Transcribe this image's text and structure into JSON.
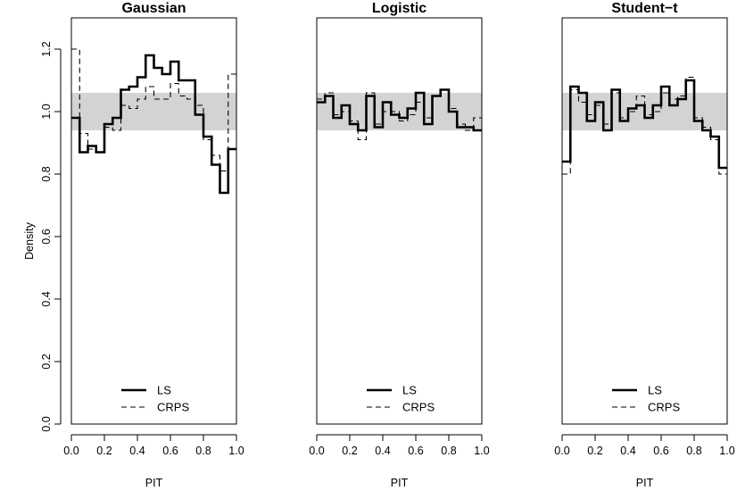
{
  "figure": {
    "ylabel": "Density"
  },
  "chart_data": [
    {
      "type": "line",
      "title": "Gaussian",
      "xlabel": "PIT",
      "ylabel": "Density",
      "xlim": [
        0,
        1
      ],
      "ylim": [
        0,
        1.3
      ],
      "x_ticks": [
        "0.0",
        "0.2",
        "0.4",
        "0.6",
        "0.8",
        "1.0"
      ],
      "y_ticks": [
        "0.0",
        "0.2",
        "0.4",
        "0.6",
        "0.8",
        "1.0",
        "1.2"
      ],
      "band": [
        0.94,
        1.06
      ],
      "bin_edges": [
        0,
        0.05,
        0.1,
        0.15,
        0.2,
        0.25,
        0.3,
        0.35,
        0.4,
        0.45,
        0.5,
        0.55,
        0.6,
        0.65,
        0.7,
        0.75,
        0.8,
        0.85,
        0.9,
        0.95,
        1.0
      ],
      "legend": {
        "position": "bottom",
        "entries": [
          "LS",
          "CRPS"
        ]
      },
      "series": [
        {
          "name": "LS",
          "style": "solid",
          "values": [
            0.98,
            0.87,
            0.89,
            0.87,
            0.96,
            0.98,
            1.07,
            1.08,
            1.11,
            1.18,
            1.14,
            1.12,
            1.16,
            1.1,
            1.1,
            0.99,
            0.92,
            0.83,
            0.74,
            0.88
          ]
        },
        {
          "name": "CRPS",
          "style": "dashed",
          "values": [
            1.2,
            0.93,
            0.88,
            0.87,
            0.95,
            0.94,
            1.02,
            1.01,
            1.04,
            1.08,
            1.04,
            1.04,
            1.09,
            1.05,
            1.04,
            1.02,
            0.91,
            0.86,
            0.81,
            1.12
          ]
        }
      ]
    },
    {
      "type": "line",
      "title": "Logistic",
      "xlabel": "PIT",
      "xlim": [
        0,
        1
      ],
      "ylim": [
        0,
        1.3
      ],
      "x_ticks": [
        "0.0",
        "0.2",
        "0.4",
        "0.6",
        "0.8",
        "1.0"
      ],
      "band": [
        0.94,
        1.06
      ],
      "bin_edges": [
        0,
        0.05,
        0.1,
        0.15,
        0.2,
        0.25,
        0.3,
        0.35,
        0.4,
        0.45,
        0.5,
        0.55,
        0.6,
        0.65,
        0.7,
        0.75,
        0.8,
        0.85,
        0.9,
        0.95,
        1.0
      ],
      "legend": {
        "position": "bottom",
        "entries": [
          "LS",
          "CRPS"
        ]
      },
      "series": [
        {
          "name": "LS",
          "style": "solid",
          "values": [
            1.03,
            1.05,
            0.98,
            1.02,
            0.96,
            0.94,
            1.05,
            0.95,
            1.03,
            0.99,
            0.98,
            1.01,
            1.06,
            0.96,
            1.05,
            1.07,
            1.0,
            0.95,
            0.95,
            0.94
          ]
        },
        {
          "name": "CRPS",
          "style": "dashed",
          "values": [
            1.04,
            1.06,
            0.99,
            1.0,
            0.97,
            0.91,
            1.06,
            0.96,
            1.0,
            1.0,
            0.97,
            0.99,
            1.03,
            0.98,
            1.05,
            1.07,
            1.01,
            0.96,
            0.94,
            0.98
          ]
        }
      ]
    },
    {
      "type": "line",
      "title": "Student−t",
      "xlabel": "PIT",
      "xlim": [
        0,
        1
      ],
      "ylim": [
        0,
        1.3
      ],
      "x_ticks": [
        "0.0",
        "0.2",
        "0.4",
        "0.6",
        "0.8",
        "1.0"
      ],
      "band": [
        0.94,
        1.06
      ],
      "bin_edges": [
        0,
        0.05,
        0.1,
        0.15,
        0.2,
        0.25,
        0.3,
        0.35,
        0.4,
        0.45,
        0.5,
        0.55,
        0.6,
        0.65,
        0.7,
        0.75,
        0.8,
        0.85,
        0.9,
        0.95,
        1.0
      ],
      "legend": {
        "position": "bottom",
        "entries": [
          "LS",
          "CRPS"
        ]
      },
      "series": [
        {
          "name": "LS",
          "style": "solid",
          "values": [
            0.84,
            1.08,
            1.06,
            0.97,
            1.03,
            0.94,
            1.07,
            0.97,
            1.01,
            1.02,
            0.98,
            1.02,
            1.08,
            1.02,
            1.04,
            1.1,
            0.97,
            0.94,
            0.92,
            0.82
          ]
        },
        {
          "name": "CRPS",
          "style": "dashed",
          "values": [
            0.8,
            1.07,
            1.03,
            0.99,
            1.02,
            0.96,
            1.06,
            0.98,
            1.0,
            1.05,
            0.99,
            1.0,
            1.06,
            1.04,
            1.05,
            1.11,
            0.98,
            0.95,
            0.91,
            0.8
          ]
        }
      ]
    }
  ]
}
